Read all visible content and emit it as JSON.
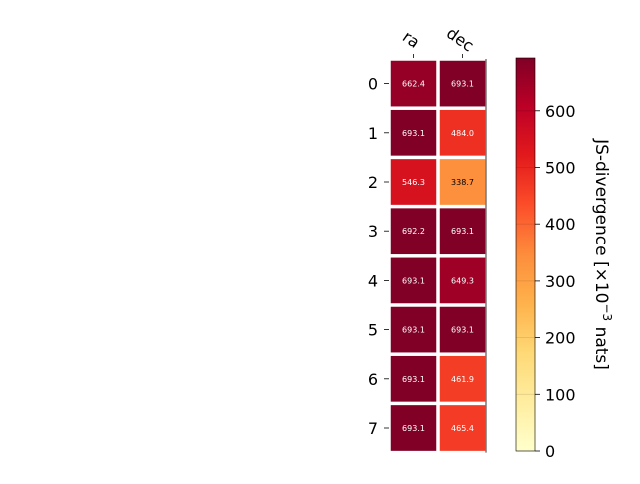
{
  "chart_data": {
    "type": "heatmap",
    "columns": [
      "ra",
      "dec"
    ],
    "rows": [
      "0",
      "1",
      "2",
      "3",
      "4",
      "5",
      "6",
      "7"
    ],
    "values": [
      [
        662.4,
        693.1
      ],
      [
        693.1,
        484.0
      ],
      [
        546.3,
        338.7
      ],
      [
        692.2,
        693.1
      ],
      [
        693.1,
        649.3
      ],
      [
        693.1,
        693.1
      ],
      [
        693.1,
        461.9
      ],
      [
        693.1,
        465.4
      ]
    ],
    "value_labels": [
      [
        "662.4",
        "693.1"
      ],
      [
        "693.1",
        "484.0"
      ],
      [
        "546.3",
        "338.7"
      ],
      [
        "692.2",
        "693.1"
      ],
      [
        "693.1",
        "649.3"
      ],
      [
        "693.1",
        "693.1"
      ],
      [
        "693.1",
        "461.9"
      ],
      [
        "693.1",
        "465.4"
      ]
    ],
    "colorbar": {
      "label_main": "JS-divergence [×10",
      "label_exp": "−3",
      "label_tail": " nats]",
      "range": [
        0,
        693.1
      ],
      "ticks": [
        0,
        100,
        200,
        300,
        400,
        500,
        600
      ],
      "tick_labels": [
        "0",
        "100",
        "200",
        "300",
        "400",
        "500",
        "600"
      ],
      "colormap": "YlOrRd"
    },
    "colors": {
      "cmap_stops": [
        "#ffffcc",
        "#ffeda0",
        "#fed976",
        "#feb24c",
        "#fd8d3c",
        "#fc4e2a",
        "#e31a1c",
        "#bd0026",
        "#800026"
      ]
    }
  }
}
